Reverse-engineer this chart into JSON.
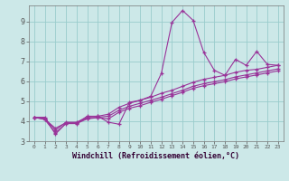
{
  "xlabel": "Windchill (Refroidissement éolien,°C)",
  "background_color": "#cce8e8",
  "grid_color": "#99cccc",
  "line_color": "#993399",
  "xlim": [
    -0.5,
    23.5
  ],
  "ylim": [
    3.0,
    9.8
  ],
  "xticks": [
    0,
    1,
    2,
    3,
    4,
    5,
    6,
    7,
    8,
    9,
    10,
    11,
    12,
    13,
    14,
    15,
    16,
    17,
    18,
    19,
    20,
    21,
    22,
    23
  ],
  "yticks": [
    3,
    4,
    5,
    6,
    7,
    8,
    9
  ],
  "series": [
    [
      4.2,
      4.2,
      3.35,
      3.9,
      3.9,
      4.25,
      4.25,
      3.95,
      3.85,
      4.95,
      5.05,
      5.25,
      6.4,
      8.95,
      9.55,
      9.05,
      7.45,
      6.55,
      6.3,
      7.1,
      6.8,
      7.5,
      6.85,
      6.8
    ],
    [
      4.2,
      4.15,
      3.55,
      3.95,
      3.95,
      4.2,
      4.25,
      4.35,
      4.7,
      4.9,
      5.05,
      5.2,
      5.4,
      5.55,
      5.75,
      5.95,
      6.1,
      6.2,
      6.3,
      6.45,
      6.55,
      6.6,
      6.7,
      6.8
    ],
    [
      4.2,
      4.1,
      3.65,
      3.92,
      3.92,
      4.15,
      4.2,
      4.25,
      4.55,
      4.75,
      4.9,
      5.05,
      5.2,
      5.38,
      5.55,
      5.75,
      5.88,
      5.98,
      6.08,
      6.22,
      6.32,
      6.42,
      6.52,
      6.62
    ],
    [
      4.2,
      4.08,
      3.42,
      3.88,
      3.88,
      4.12,
      4.18,
      4.12,
      4.45,
      4.65,
      4.78,
      4.95,
      5.1,
      5.28,
      5.45,
      5.65,
      5.78,
      5.88,
      5.98,
      6.12,
      6.22,
      6.32,
      6.42,
      6.52
    ]
  ]
}
